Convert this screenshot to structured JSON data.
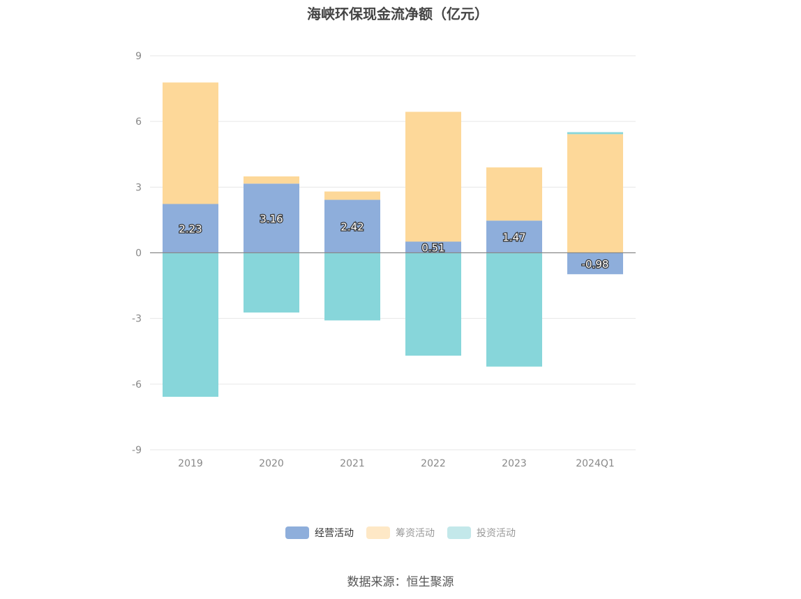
{
  "chart_data": {
    "type": "bar",
    "stacked": true,
    "title": "海峡环保现金流净额（亿元）",
    "categories": [
      "2019",
      "2020",
      "2021",
      "2022",
      "2023",
      "2024Q1"
    ],
    "series": [
      {
        "name": "经营活动",
        "color": "#8eaedb",
        "values": [
          2.23,
          3.16,
          2.42,
          0.51,
          1.47,
          -0.98
        ],
        "labeled": true
      },
      {
        "name": "筹资活动",
        "color": "#fdd899",
        "values": [
          5.55,
          0.33,
          0.38,
          5.93,
          2.43,
          5.42
        ],
        "labeled": false
      },
      {
        "name": "投资活动",
        "color": "#87d6da",
        "values": [
          -6.58,
          -2.73,
          -3.09,
          -4.7,
          -5.2,
          0.09
        ],
        "labeled": false
      }
    ],
    "legend_colors": [
      "#8eaedb",
      "#fee8c6",
      "#c3e8ea"
    ],
    "y_ticks": [
      "9",
      "6",
      "3",
      "0",
      "-3",
      "-6",
      "-9"
    ],
    "ylim": [
      -9,
      9
    ],
    "grid": true,
    "legend_position": "bottom"
  },
  "source": "数据来源：恒生聚源"
}
